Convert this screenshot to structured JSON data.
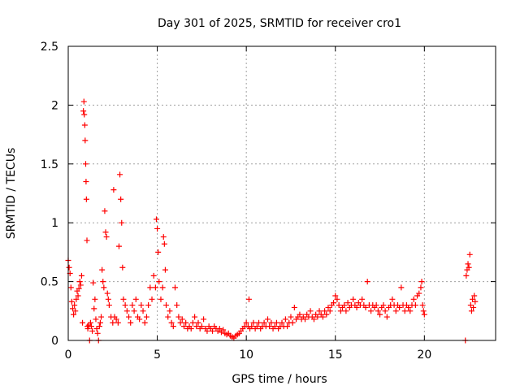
{
  "chart_data": {
    "type": "scatter",
    "title": "Day 301 of 2025, SRMTID for receiver cro1",
    "xlabel": "GPS time / hours",
    "ylabel": "SRMTID / TECUs",
    "xlim": [
      0,
      24
    ],
    "ylim": [
      0,
      2.5
    ],
    "x_ticks": [
      0,
      5,
      10,
      15,
      20
    ],
    "x_tick_labels": [
      "0",
      "5",
      "10",
      "15",
      "20"
    ],
    "y_ticks": [
      0,
      0.5,
      1,
      1.5,
      2,
      2.5
    ],
    "y_tick_labels": [
      "0",
      "0.5",
      "1",
      "1.5",
      "2",
      "2.5"
    ],
    "grid": true,
    "marker": "+",
    "series": [
      {
        "name": "SRMTID",
        "color": "#ff0000",
        "points": [
          [
            0.0,
            0.68
          ],
          [
            0.05,
            0.62
          ],
          [
            0.1,
            0.57
          ],
          [
            0.15,
            0.45
          ],
          [
            0.2,
            0.33
          ],
          [
            0.25,
            0.27
          ],
          [
            0.3,
            0.22
          ],
          [
            0.35,
            0.3
          ],
          [
            0.4,
            0.25
          ],
          [
            0.45,
            0.35
          ],
          [
            0.5,
            0.42
          ],
          [
            0.55,
            0.38
          ],
          [
            0.6,
            0.44
          ],
          [
            0.65,
            0.5
          ],
          [
            0.7,
            0.47
          ],
          [
            0.75,
            0.55
          ],
          [
            0.8,
            0.15
          ],
          [
            0.85,
            1.95
          ],
          [
            0.88,
            2.03
          ],
          [
            0.9,
            1.92
          ],
          [
            0.93,
            1.83
          ],
          [
            0.95,
            1.7
          ],
          [
            0.98,
            1.5
          ],
          [
            1.0,
            1.35
          ],
          [
            1.02,
            1.2
          ],
          [
            1.05,
            0.85
          ],
          [
            1.08,
            0.12
          ],
          [
            1.1,
            0.1
          ],
          [
            1.15,
            0.13
          ],
          [
            1.2,
            0.0
          ],
          [
            1.25,
            0.15
          ],
          [
            1.3,
            0.12
          ],
          [
            1.35,
            0.08
          ],
          [
            1.4,
            0.49
          ],
          [
            1.45,
            0.27
          ],
          [
            1.5,
            0.35
          ],
          [
            1.55,
            0.18
          ],
          [
            1.6,
            0.1
          ],
          [
            1.65,
            0.06
          ],
          [
            1.7,
            0.0
          ],
          [
            1.75,
            0.12
          ],
          [
            1.8,
            0.15
          ],
          [
            1.85,
            0.2
          ],
          [
            1.9,
            0.6
          ],
          [
            1.95,
            0.5
          ],
          [
            2.0,
            0.45
          ],
          [
            2.05,
            1.1
          ],
          [
            2.1,
            0.92
          ],
          [
            2.15,
            0.88
          ],
          [
            2.2,
            0.4
          ],
          [
            2.25,
            0.35
          ],
          [
            2.3,
            0.3
          ],
          [
            2.4,
            0.2
          ],
          [
            2.5,
            0.15
          ],
          [
            2.55,
            1.28
          ],
          [
            2.6,
            0.2
          ],
          [
            2.7,
            0.18
          ],
          [
            2.8,
            0.15
          ],
          [
            2.85,
            0.8
          ],
          [
            2.9,
            1.41
          ],
          [
            2.95,
            1.2
          ],
          [
            3.0,
            1.0
          ],
          [
            3.05,
            0.62
          ],
          [
            3.1,
            0.35
          ],
          [
            3.2,
            0.3
          ],
          [
            3.3,
            0.25
          ],
          [
            3.4,
            0.2
          ],
          [
            3.5,
            0.15
          ],
          [
            3.6,
            0.3
          ],
          [
            3.7,
            0.25
          ],
          [
            3.8,
            0.35
          ],
          [
            3.9,
            0.2
          ],
          [
            4.0,
            0.18
          ],
          [
            4.1,
            0.3
          ],
          [
            4.2,
            0.25
          ],
          [
            4.3,
            0.15
          ],
          [
            4.4,
            0.2
          ],
          [
            4.5,
            0.3
          ],
          [
            4.6,
            0.45
          ],
          [
            4.7,
            0.35
          ],
          [
            4.8,
            0.55
          ],
          [
            4.9,
            0.45
          ],
          [
            4.95,
            1.03
          ],
          [
            5.0,
            0.95
          ],
          [
            5.05,
            0.75
          ],
          [
            5.1,
            0.5
          ],
          [
            5.2,
            0.35
          ],
          [
            5.3,
            0.45
          ],
          [
            5.35,
            0.88
          ],
          [
            5.4,
            0.82
          ],
          [
            5.45,
            0.6
          ],
          [
            5.5,
            0.3
          ],
          [
            5.6,
            0.2
          ],
          [
            5.7,
            0.25
          ],
          [
            5.8,
            0.15
          ],
          [
            5.9,
            0.12
          ],
          [
            6.0,
            0.45
          ],
          [
            6.1,
            0.3
          ],
          [
            6.2,
            0.2
          ],
          [
            6.3,
            0.15
          ],
          [
            6.4,
            0.18
          ],
          [
            6.5,
            0.12
          ],
          [
            6.6,
            0.15
          ],
          [
            6.7,
            0.1
          ],
          [
            6.8,
            0.12
          ],
          [
            6.9,
            0.1
          ],
          [
            7.0,
            0.15
          ],
          [
            7.1,
            0.2
          ],
          [
            7.2,
            0.12
          ],
          [
            7.3,
            0.15
          ],
          [
            7.4,
            0.1
          ],
          [
            7.5,
            0.12
          ],
          [
            7.6,
            0.18
          ],
          [
            7.7,
            0.1
          ],
          [
            7.8,
            0.08
          ],
          [
            7.9,
            0.12
          ],
          [
            8.0,
            0.1
          ],
          [
            8.1,
            0.08
          ],
          [
            8.2,
            0.12
          ],
          [
            8.3,
            0.1
          ],
          [
            8.4,
            0.08
          ],
          [
            8.5,
            0.1
          ],
          [
            8.6,
            0.07
          ],
          [
            8.7,
            0.09
          ],
          [
            8.8,
            0.06
          ],
          [
            8.9,
            0.05
          ],
          [
            9.0,
            0.06
          ],
          [
            9.1,
            0.04
          ],
          [
            9.2,
            0.03
          ],
          [
            9.3,
            0.02
          ],
          [
            9.4,
            0.04
          ],
          [
            9.5,
            0.05
          ],
          [
            9.6,
            0.06
          ],
          [
            9.7,
            0.08
          ],
          [
            9.8,
            0.1
          ],
          [
            9.9,
            0.12
          ],
          [
            10.0,
            0.15
          ],
          [
            10.1,
            0.12
          ],
          [
            10.15,
            0.35
          ],
          [
            10.2,
            0.1
          ],
          [
            10.3,
            0.12
          ],
          [
            10.4,
            0.15
          ],
          [
            10.5,
            0.1
          ],
          [
            10.6,
            0.12
          ],
          [
            10.7,
            0.15
          ],
          [
            10.8,
            0.1
          ],
          [
            10.9,
            0.12
          ],
          [
            11.0,
            0.15
          ],
          [
            11.1,
            0.12
          ],
          [
            11.2,
            0.18
          ],
          [
            11.3,
            0.12
          ],
          [
            11.4,
            0.15
          ],
          [
            11.5,
            0.1
          ],
          [
            11.6,
            0.12
          ],
          [
            11.7,
            0.15
          ],
          [
            11.8,
            0.1
          ],
          [
            11.9,
            0.12
          ],
          [
            12.0,
            0.15
          ],
          [
            12.1,
            0.12
          ],
          [
            12.2,
            0.18
          ],
          [
            12.3,
            0.12
          ],
          [
            12.4,
            0.15
          ],
          [
            12.5,
            0.2
          ],
          [
            12.6,
            0.15
          ],
          [
            12.7,
            0.28
          ],
          [
            12.8,
            0.18
          ],
          [
            12.9,
            0.2
          ],
          [
            13.0,
            0.22
          ],
          [
            13.1,
            0.18
          ],
          [
            13.2,
            0.2
          ],
          [
            13.3,
            0.18
          ],
          [
            13.4,
            0.22
          ],
          [
            13.5,
            0.2
          ],
          [
            13.6,
            0.25
          ],
          [
            13.7,
            0.2
          ],
          [
            13.8,
            0.18
          ],
          [
            13.9,
            0.22
          ],
          [
            14.0,
            0.2
          ],
          [
            14.1,
            0.25
          ],
          [
            14.2,
            0.22
          ],
          [
            14.3,
            0.2
          ],
          [
            14.4,
            0.25
          ],
          [
            14.5,
            0.22
          ],
          [
            14.6,
            0.28
          ],
          [
            14.7,
            0.25
          ],
          [
            14.8,
            0.3
          ],
          [
            14.9,
            0.32
          ],
          [
            15.0,
            0.38
          ],
          [
            15.1,
            0.35
          ],
          [
            15.2,
            0.3
          ],
          [
            15.3,
            0.25
          ],
          [
            15.4,
            0.28
          ],
          [
            15.5,
            0.3
          ],
          [
            15.6,
            0.25
          ],
          [
            15.7,
            0.32
          ],
          [
            15.8,
            0.28
          ],
          [
            15.9,
            0.3
          ],
          [
            16.0,
            0.35
          ],
          [
            16.1,
            0.3
          ],
          [
            16.2,
            0.28
          ],
          [
            16.3,
            0.32
          ],
          [
            16.4,
            0.3
          ],
          [
            16.5,
            0.35
          ],
          [
            16.6,
            0.3
          ],
          [
            16.7,
            0.28
          ],
          [
            16.8,
            0.5
          ],
          [
            16.9,
            0.3
          ],
          [
            17.0,
            0.25
          ],
          [
            17.1,
            0.3
          ],
          [
            17.2,
            0.28
          ],
          [
            17.3,
            0.3
          ],
          [
            17.4,
            0.25
          ],
          [
            17.5,
            0.22
          ],
          [
            17.6,
            0.28
          ],
          [
            17.7,
            0.3
          ],
          [
            17.8,
            0.25
          ],
          [
            17.9,
            0.2
          ],
          [
            18.0,
            0.28
          ],
          [
            18.1,
            0.3
          ],
          [
            18.2,
            0.35
          ],
          [
            18.3,
            0.3
          ],
          [
            18.4,
            0.25
          ],
          [
            18.5,
            0.3
          ],
          [
            18.6,
            0.28
          ],
          [
            18.7,
            0.45
          ],
          [
            18.8,
            0.3
          ],
          [
            18.9,
            0.25
          ],
          [
            19.0,
            0.3
          ],
          [
            19.1,
            0.28
          ],
          [
            19.2,
            0.25
          ],
          [
            19.3,
            0.3
          ],
          [
            19.4,
            0.35
          ],
          [
            19.5,
            0.3
          ],
          [
            19.6,
            0.38
          ],
          [
            19.7,
            0.4
          ],
          [
            19.8,
            0.45
          ],
          [
            19.85,
            0.5
          ],
          [
            19.9,
            0.3
          ],
          [
            19.95,
            0.25
          ],
          [
            20.0,
            0.22
          ],
          [
            22.3,
            0.0
          ],
          [
            22.35,
            0.55
          ],
          [
            22.4,
            0.6
          ],
          [
            22.45,
            0.65
          ],
          [
            22.5,
            0.62
          ],
          [
            22.55,
            0.73
          ],
          [
            22.6,
            0.3
          ],
          [
            22.65,
            0.25
          ],
          [
            22.7,
            0.35
          ],
          [
            22.75,
            0.28
          ],
          [
            22.8,
            0.38
          ],
          [
            22.85,
            0.33
          ]
        ]
      }
    ]
  }
}
